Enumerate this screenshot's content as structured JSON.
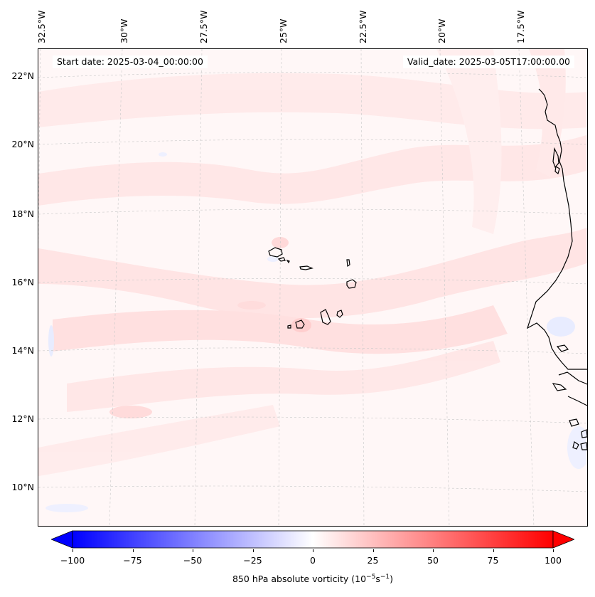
{
  "map": {
    "start_date": "Start date: 2025-03-04_00:00:00",
    "valid_date": "Valid_date: 2025-03-05T17:00:00.00",
    "lon_labels": [
      "32.5°W",
      "30°W",
      "27.5°W",
      "25°W",
      "22.5°W",
      "20°W",
      "17.5°W"
    ],
    "lat_labels": [
      "22°N",
      "20°N",
      "18°N",
      "16°N",
      "14°N",
      "12°N",
      "10°N"
    ],
    "coastline_color": "#000000",
    "field_colors": {
      "positive_light": "#ffe4e4",
      "positive_medium": "#ffd2d2",
      "negative_light": "#eef0ff"
    }
  },
  "colorbar": {
    "ticks": [
      "−100",
      "−75",
      "−50",
      "−25",
      "0",
      "25",
      "50",
      "75",
      "100"
    ],
    "tick_values": [
      -100,
      -75,
      -50,
      -25,
      0,
      25,
      50,
      75,
      100
    ],
    "range": [
      -100,
      100
    ],
    "colormap": "bwr",
    "low_color": "#0000ff",
    "mid_color": "#ffffff",
    "high_color": "#ff0000",
    "label": "850 hPa absolute vorticity (10",
    "label_exp1": "−5",
    "label_mid": "s",
    "label_exp2": "−1",
    "label_end": ")"
  }
}
